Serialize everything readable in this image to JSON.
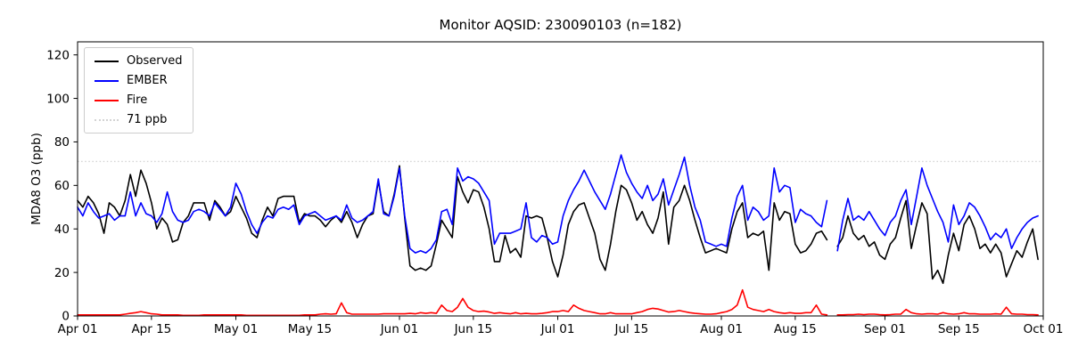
{
  "chart_data": {
    "type": "line",
    "title": "Monitor AQSID: 230090103 (n=182)",
    "ylabel": "MDA8 O3 (ppb)",
    "xlabel": "",
    "ylim": [
      0,
      126
    ],
    "x_range": [
      0,
      183
    ],
    "x_unit": "days since Apr 01",
    "grid": false,
    "legend_position": "upper left",
    "note_gap": "null values = missing day (Aug 22)",
    "yticks": [
      0,
      20,
      40,
      60,
      80,
      100,
      120
    ],
    "xticks": [
      {
        "label": "Apr 01",
        "day": 0
      },
      {
        "label": "Apr 15",
        "day": 14
      },
      {
        "label": "May 01",
        "day": 30
      },
      {
        "label": "May 15",
        "day": 44
      },
      {
        "label": "Jun 01",
        "day": 61
      },
      {
        "label": "Jun 15",
        "day": 75
      },
      {
        "label": "Jul 01",
        "day": 91
      },
      {
        "label": "Jul 15",
        "day": 105
      },
      {
        "label": "Aug 01",
        "day": 122
      },
      {
        "label": "Aug 15",
        "day": 136
      },
      {
        "label": "Sep 01",
        "day": 153
      },
      {
        "label": "Sep 15",
        "day": 167
      },
      {
        "label": "Oct 01",
        "day": 183
      }
    ],
    "threshold": {
      "label": "71 ppb",
      "value": 71,
      "color": "#d3d3d3",
      "style": "dotted"
    },
    "series": [
      {
        "key": "observed",
        "name": "Observed",
        "color": "#000000",
        "values": [
          53,
          50,
          55,
          52,
          47,
          38,
          52,
          50,
          46,
          53,
          65,
          55,
          67,
          61,
          52,
          40,
          45,
          42,
          34,
          35,
          43,
          46,
          52,
          52,
          52,
          44,
          53,
          50,
          46,
          48,
          55,
          50,
          45,
          38,
          36,
          44,
          50,
          46,
          54,
          55,
          55,
          55,
          43,
          47,
          46,
          46,
          44,
          41,
          44,
          46,
          43,
          48,
          43,
          36,
          42,
          46,
          47,
          62,
          48,
          46,
          56,
          69,
          45,
          23,
          21,
          22,
          21,
          23,
          33,
          44,
          40,
          36,
          64,
          57,
          52,
          58,
          57,
          50,
          40,
          25,
          25,
          37,
          29,
          31,
          27,
          46,
          45,
          46,
          45,
          36,
          25,
          18,
          28,
          42,
          48,
          51,
          52,
          45,
          38,
          26,
          21,
          33,
          48,
          60,
          58,
          52,
          44,
          48,
          42,
          38,
          45,
          57,
          33,
          50,
          53,
          60,
          53,
          44,
          36,
          29,
          30,
          31,
          30,
          29,
          40,
          48,
          52,
          36,
          38,
          37,
          39,
          21,
          52,
          44,
          48,
          47,
          33,
          29,
          30,
          33,
          38,
          39,
          35,
          null,
          32,
          36,
          46,
          38,
          35,
          37,
          32,
          34,
          28,
          26,
          33,
          36,
          45,
          53,
          31,
          42,
          52,
          47,
          17,
          21,
          15,
          28,
          38,
          30,
          42,
          46,
          40,
          31,
          33,
          29,
          33,
          29,
          18,
          24,
          30,
          27,
          34,
          40,
          26
        ]
      },
      {
        "key": "ember",
        "name": "EMBER",
        "color": "#0000ff",
        "values": [
          50,
          46,
          52,
          48,
          45,
          46,
          47,
          44,
          46,
          46,
          57,
          46,
          52,
          47,
          46,
          43,
          47,
          57,
          48,
          44,
          43,
          44,
          48,
          49,
          48,
          46,
          52,
          49,
          46,
          50,
          61,
          56,
          48,
          42,
          38,
          43,
          46,
          45,
          49,
          50,
          49,
          51,
          42,
          46,
          47,
          48,
          46,
          44,
          45,
          46,
          44,
          51,
          45,
          43,
          44,
          46,
          48,
          63,
          47,
          46,
          55,
          68,
          46,
          31,
          29,
          30,
          29,
          31,
          35,
          48,
          49,
          42,
          68,
          62,
          64,
          63,
          61,
          57,
          53,
          33,
          38,
          38,
          38,
          39,
          40,
          52,
          36,
          34,
          37,
          36,
          33,
          34,
          46,
          53,
          58,
          62,
          67,
          62,
          57,
          53,
          49,
          56,
          65,
          74,
          66,
          61,
          57,
          54,
          60,
          53,
          56,
          63,
          51,
          58,
          65,
          73,
          60,
          50,
          44,
          34,
          33,
          32,
          33,
          32,
          45,
          55,
          60,
          44,
          50,
          48,
          44,
          46,
          68,
          57,
          60,
          59,
          43,
          49,
          47,
          46,
          43,
          41,
          53,
          null,
          30,
          44,
          54,
          44,
          46,
          44,
          48,
          44,
          40,
          37,
          43,
          46,
          53,
          58,
          42,
          55,
          68,
          60,
          54,
          48,
          43,
          34,
          51,
          42,
          46,
          52,
          50,
          46,
          41,
          35,
          38,
          36,
          40,
          31,
          36,
          40,
          43,
          45,
          46
        ]
      },
      {
        "key": "fire",
        "name": "Fire",
        "color": "#ff0000",
        "values": [
          0.5,
          0.5,
          0.5,
          0.5,
          0.5,
          0.5,
          0.5,
          0.5,
          0.5,
          0.8,
          1.2,
          1.5,
          2,
          1.5,
          1,
          0.8,
          0.5,
          0.5,
          0.5,
          0.5,
          0.3,
          0.3,
          0.3,
          0.3,
          0.5,
          0.5,
          0.5,
          0.5,
          0.5,
          0.5,
          0.5,
          0.5,
          0.3,
          0.3,
          0.3,
          0.3,
          0.3,
          0.3,
          0.3,
          0.3,
          0.3,
          0.3,
          0.3,
          0.5,
          0.5,
          0.5,
          0.8,
          1,
          0.8,
          1,
          6,
          1.5,
          0.8,
          0.8,
          0.8,
          0.8,
          0.8,
          0.8,
          1,
          1,
          1,
          1,
          1,
          1.2,
          1,
          1.5,
          1.2,
          1.5,
          1.2,
          5,
          2.5,
          2,
          4,
          8,
          4,
          2.5,
          2,
          2.2,
          1.8,
          1.2,
          1.5,
          1.2,
          1,
          1.5,
          1,
          1.2,
          1,
          1,
          1.2,
          1.5,
          2,
          2,
          2.5,
          2,
          5,
          3.5,
          2.5,
          2,
          1.5,
          1,
          1,
          1.5,
          1,
          1,
          1,
          1,
          1.5,
          2,
          3,
          3.5,
          3.2,
          2.5,
          1.8,
          2,
          2.5,
          2,
          1.5,
          1.2,
          1,
          0.8,
          0.8,
          1,
          1.5,
          2,
          3,
          5,
          12,
          4,
          3,
          2.5,
          2,
          3,
          2,
          1.5,
          1.2,
          1.5,
          1.2,
          1.2,
          1.5,
          1.5,
          5,
          0.8,
          0.5,
          null,
          0.5,
          0.5,
          0.6,
          0.6,
          0.8,
          0.6,
          0.8,
          0.8,
          0.6,
          0.5,
          0.6,
          0.8,
          0.8,
          3,
          1.5,
          1,
          0.8,
          1,
          1,
          0.8,
          1.5,
          1,
          0.8,
          1,
          1.5,
          1,
          1,
          0.8,
          0.8,
          0.8,
          1,
          0.8,
          4,
          1,
          0.8,
          0.8,
          0.6,
          0.6,
          0.5
        ]
      }
    ]
  }
}
